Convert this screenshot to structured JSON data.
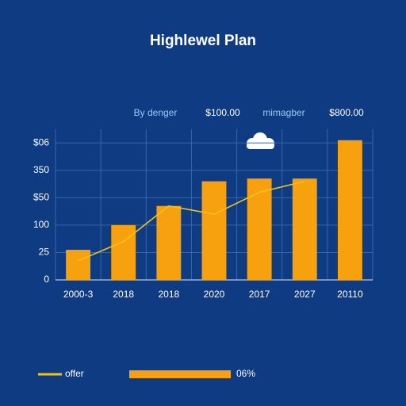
{
  "chart_data": {
    "type": "bar",
    "title": "Highlewel Plan",
    "header_labels": [
      "By denger",
      "$100.00",
      "mimagber",
      "$800.00"
    ],
    "categories": [
      "2000-3",
      "2018",
      "2018",
      "2020",
      "2017",
      "2027",
      "20110"
    ],
    "series": [
      {
        "name": "06%",
        "color": "#f7a10e",
        "values": [
          1.1,
          2.0,
          2.7,
          3.6,
          3.7,
          3.7,
          5.1
        ]
      },
      {
        "name": "offer",
        "type": "line",
        "color": "#f2c21c",
        "values": [
          0.7,
          1.4,
          2.7,
          2.4,
          3.2,
          3.6,
          null
        ]
      }
    ],
    "ylim": [
      0,
      5.5
    ],
    "yticks": [
      0,
      {
        "value": 1,
        "label": "25"
      },
      {
        "value": 2,
        "label": "100"
      },
      {
        "value": 3,
        "label": "$50"
      },
      {
        "value": 4,
        "label": "350"
      },
      {
        "value": 5,
        "label": "$06"
      }
    ],
    "grid": true
  }
}
